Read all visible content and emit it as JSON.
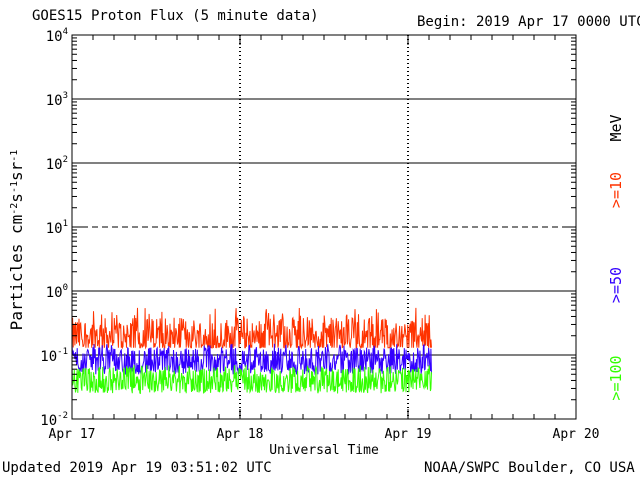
{
  "header": {
    "title": "GOES15 Proton Flux (5 minute data)",
    "begin": "Begin: 2019 Apr 17 0000 UTC"
  },
  "footer": {
    "updated": "Updated 2019 Apr 19 03:51:02 UTC",
    "credit": "NOAA/SWPC Boulder, CO USA"
  },
  "legend": {
    "units": "MeV",
    "items": [
      {
        "label": ">=10",
        "color": "#ff3300"
      },
      {
        "label": ">=50",
        "color": "#3300ff"
      },
      {
        "label": ">=100",
        "color": "#33ff00"
      }
    ]
  },
  "chart_data": {
    "type": "line",
    "title": "GOES15 Proton Flux (5 minute data)",
    "xlabel": "Universal Time",
    "ylabel": "Particles cm-2 s-1 sr-1",
    "yscale": "log",
    "ylim": [
      0.01,
      10000
    ],
    "xlim_days": [
      0,
      3
    ],
    "x_tick_labels": [
      "Apr 17",
      "Apr 18",
      "Apr 19",
      "Apr 20"
    ],
    "y_tick_labels": [
      {
        "base": "10",
        "exp": "4"
      },
      {
        "base": "10",
        "exp": "3"
      },
      {
        "base": "10",
        "exp": "2"
      },
      {
        "base": "10",
        "exp": "1"
      },
      {
        "base": "10",
        "exp": "0"
      },
      {
        "base": "10",
        "exp": "-1"
      },
      {
        "base": "10",
        "exp": "-2"
      }
    ],
    "reference_lines": [
      {
        "value": 10,
        "style": "dashed"
      },
      {
        "value": 1,
        "style": "solid"
      },
      {
        "value": 0.1,
        "style": "solid"
      },
      {
        "value": 100,
        "style": "solid"
      },
      {
        "value": 1000,
        "style": "solid"
      }
    ],
    "data_end_day": 2.14,
    "series": [
      {
        "name": ">=10 MeV",
        "color": "#ff3300",
        "typical": 0.2,
        "min": 0.13,
        "max": 0.55
      },
      {
        "name": ">=50 MeV",
        "color": "#3300ff",
        "typical": 0.08,
        "min": 0.05,
        "max": 0.15
      },
      {
        "name": ">=100 MeV",
        "color": "#33ff00",
        "typical": 0.04,
        "min": 0.025,
        "max": 0.07
      }
    ]
  }
}
